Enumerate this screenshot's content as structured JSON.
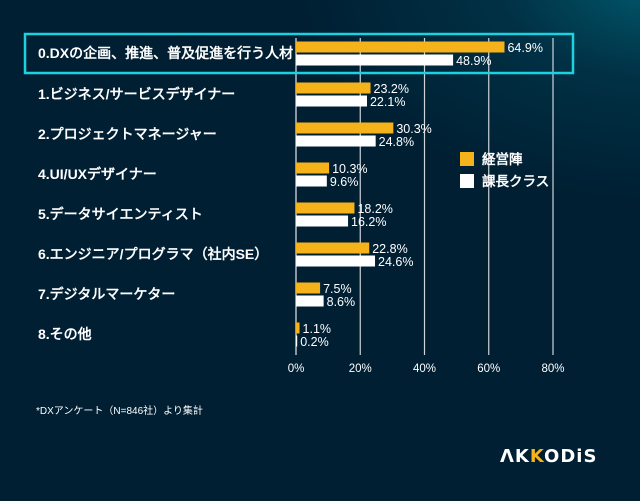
{
  "chart_data": {
    "type": "bar",
    "orientation": "horizontal",
    "title": "",
    "xlabel": "",
    "ylabel": "",
    "xlim": [
      0,
      80
    ],
    "x_ticks": [
      0,
      20,
      40,
      60,
      80
    ],
    "x_tick_labels": [
      "0%",
      "20%",
      "40%",
      "60%",
      "80%"
    ],
    "grid": true,
    "legend_position": "right",
    "categories": [
      "0.DXの企画、推進、普及促進を行う人材",
      "1.ビジネス/サービスデザイナー",
      "2.プロジェクトマネージャー",
      "4.UI/UXデザイナー",
      "5.データサイエンティスト",
      "6.エンジニア/プログラマ（社内SE）",
      "7.デジタルマーケター",
      "8.その他"
    ],
    "series": [
      {
        "name": "経営陣",
        "color": "#f5b21b",
        "values": [
          64.9,
          23.2,
          30.3,
          10.3,
          18.2,
          22.8,
          7.5,
          1.1
        ],
        "labels": [
          "64.9%",
          "23.2%",
          "30.3%",
          "10.3%",
          "18.2%",
          "22.8%",
          "7.5%",
          "1.1%"
        ]
      },
      {
        "name": "課長クラス",
        "color": "#ffffff",
        "values": [
          48.9,
          22.1,
          24.8,
          9.6,
          16.2,
          24.6,
          8.6,
          0.2
        ],
        "labels": [
          "48.9%",
          "22.1%",
          "24.8%",
          "9.6%",
          "16.2%",
          "24.6%",
          "8.6%",
          "0.2%"
        ]
      }
    ],
    "highlighted_category": "0.DXの企画、推進、普及促進を行う人材",
    "highlight_color": "#19d3e0",
    "annotations": [
      "*DXアンケート（N=846社）より集計"
    ]
  },
  "footnote": "*DXアンケート（N=846社）より集計",
  "logo": {
    "part1": "/\\K",
    "part2": "K",
    "part3": "ODiS",
    "text": "AKKODiS"
  }
}
